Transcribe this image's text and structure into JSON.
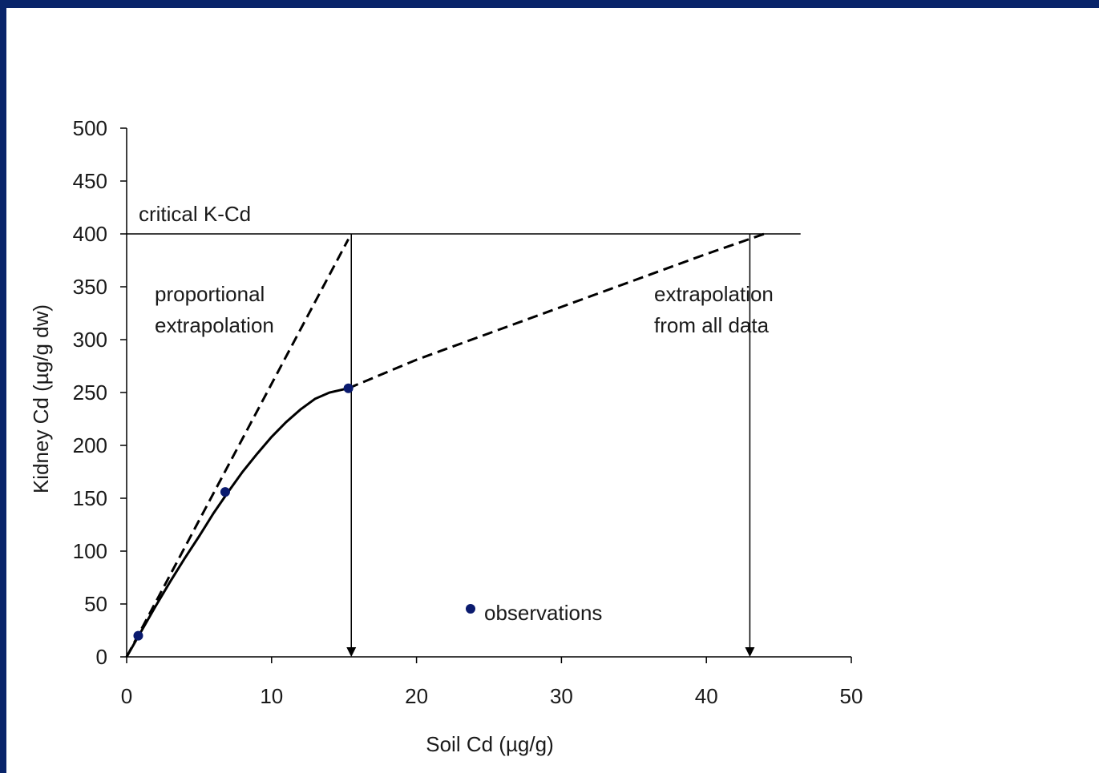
{
  "colors": {
    "border": "#08246a",
    "background": "#ffffff",
    "axis": "#000000",
    "marker": "#0a1a6e"
  },
  "chart_data": {
    "type": "scatter",
    "xlabel": "Soil Cd (µg/g)",
    "ylabel": "Kidney Cd (µg/g dw)",
    "xlim": [
      0,
      50
    ],
    "ylim": [
      0,
      500
    ],
    "xticks": [
      0,
      10,
      20,
      30,
      40,
      50
    ],
    "yticks": [
      0,
      50,
      100,
      150,
      200,
      250,
      300,
      350,
      400,
      450,
      500
    ],
    "grid": false,
    "series": [
      {
        "name": "observations",
        "kind": "points",
        "x": [
          0.8,
          6.8,
          15.3
        ],
        "y": [
          20,
          156,
          254
        ]
      }
    ],
    "curves": {
      "fitted": {
        "style": "solid",
        "x": [
          0,
          1,
          2,
          3,
          4,
          5,
          6,
          7,
          8,
          9,
          10,
          11,
          12,
          13,
          14,
          15.3
        ],
        "y": [
          0,
          24,
          48,
          71,
          93,
          114,
          136,
          156,
          175,
          192,
          208,
          222,
          234,
          244,
          250,
          254
        ]
      },
      "proportional_extrapolation": {
        "style": "dashed",
        "x": [
          0,
          15.3
        ],
        "y": [
          0,
          395
        ]
      },
      "extrapolation_all_data": {
        "style": "dashed",
        "x": [
          15.3,
          20,
          25,
          30,
          35,
          40,
          44
        ],
        "y": [
          254,
          281,
          306,
          331,
          356,
          381,
          400
        ]
      }
    },
    "reference_lines": {
      "critical": {
        "y": 400,
        "x_end": 46.5
      },
      "arrows": [
        {
          "x": 15.5,
          "from_y": 400,
          "to_y": 0
        },
        {
          "x": 43,
          "from_y": 400,
          "to_y": 0
        }
      ]
    },
    "annotations": {
      "critical": "critical K-Cd",
      "proportional_1": "proportional",
      "proportional_2": "extrapolation",
      "all_data_1": "extrapolation",
      "all_data_2": "from all data"
    },
    "legend": {
      "label": "observations"
    }
  }
}
